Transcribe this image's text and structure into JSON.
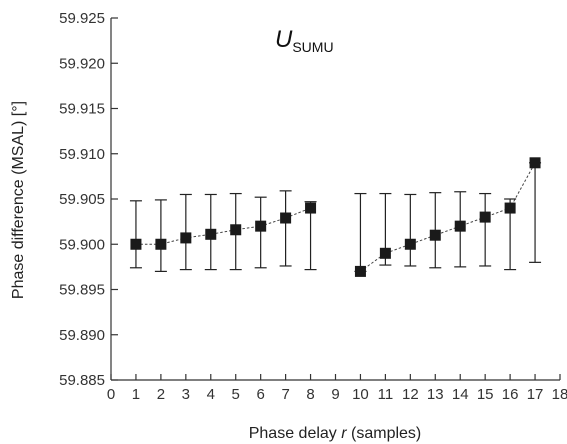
{
  "chart_data": {
    "type": "scatter",
    "title_main": "U",
    "title_sub": "SUMU",
    "xlabel_pre": "Phase delay ",
    "xlabel_var": "r",
    "xlabel_post": " (samples)",
    "ylabel": "Phase difference (MSAL) [°]",
    "xlim": [
      0,
      18
    ],
    "ylim": [
      59.885,
      59.925
    ],
    "x_ticks": [
      "0",
      "1",
      "2",
      "3",
      "4",
      "5",
      "6",
      "7",
      "8",
      "9",
      "10",
      "11",
      "12",
      "13",
      "14",
      "15",
      "16",
      "17",
      "18"
    ],
    "y_ticks": [
      "59.885",
      "59.890",
      "59.895",
      "59.900",
      "59.905",
      "59.910",
      "59.915",
      "59.920",
      "59.925"
    ],
    "grid": false,
    "marker_color": "#1a1a1a",
    "segments": [
      [
        {
          "x": 1,
          "y": 59.9,
          "low": 59.8974,
          "high": 59.9048
        },
        {
          "x": 2,
          "y": 59.9,
          "low": 59.897,
          "high": 59.9049
        },
        {
          "x": 3,
          "y": 59.9007,
          "low": 59.8972,
          "high": 59.9055
        },
        {
          "x": 4,
          "y": 59.9011,
          "low": 59.8972,
          "high": 59.9055
        },
        {
          "x": 5,
          "y": 59.9016,
          "low": 59.8972,
          "high": 59.9056
        },
        {
          "x": 6,
          "y": 59.902,
          "low": 59.8974,
          "high": 59.9052
        },
        {
          "x": 7,
          "y": 59.9029,
          "low": 59.8976,
          "high": 59.9059
        },
        {
          "x": 8,
          "y": 59.904,
          "low": 59.8972,
          "high": 59.9047
        }
      ],
      [
        {
          "x": 10,
          "y": 59.897,
          "low": 59.897,
          "high": 59.9056
        },
        {
          "x": 11,
          "y": 59.899,
          "low": 59.8977,
          "high": 59.9056
        },
        {
          "x": 12,
          "y": 59.9,
          "low": 59.8976,
          "high": 59.9055
        },
        {
          "x": 13,
          "y": 59.901,
          "low": 59.8974,
          "high": 59.9057
        },
        {
          "x": 14,
          "y": 59.902,
          "low": 59.8975,
          "high": 59.9058
        },
        {
          "x": 15,
          "y": 59.903,
          "low": 59.8976,
          "high": 59.9056
        },
        {
          "x": 16,
          "y": 59.904,
          "low": 59.8972,
          "high": 59.905
        },
        {
          "x": 17,
          "y": 59.909,
          "low": 59.898,
          "high": 59.909
        }
      ]
    ]
  }
}
